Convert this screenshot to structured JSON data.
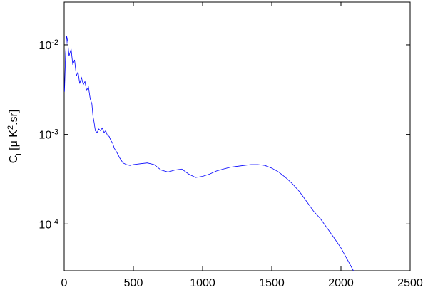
{
  "chart_data": {
    "type": "line",
    "ylabel": "C_{l} [μ K^{2}.sr]",
    "x": [
      2,
      10,
      18,
      25,
      35,
      50,
      62,
      75,
      88,
      100,
      112,
      125,
      138,
      150,
      162,
      175,
      188,
      200,
      208,
      215,
      225,
      238,
      250,
      262,
      275,
      288,
      300,
      312,
      325,
      338,
      350,
      362,
      375,
      388,
      400,
      425,
      450,
      475,
      500,
      550,
      600,
      650,
      700,
      750,
      800,
      850,
      900,
      950,
      1000,
      1050,
      1100,
      1150,
      1200,
      1250,
      1300,
      1350,
      1400,
      1450,
      1500,
      1550,
      1600,
      1650,
      1700,
      1750,
      1800,
      1850,
      1900,
      1950,
      2000,
      2050,
      2090
    ],
    "series": [
      {
        "color": "#0000ff",
        "values": [
          0.003,
          0.008,
          0.0125,
          0.011,
          0.0075,
          0.009,
          0.006,
          0.0068,
          0.0045,
          0.005,
          0.0037,
          0.0043,
          0.0036,
          0.0039,
          0.0031,
          0.0034,
          0.0025,
          0.0022,
          0.0016,
          0.0014,
          0.0011,
          0.00105,
          0.00115,
          0.0011,
          0.00118,
          0.00105,
          0.0011,
          0.00098,
          0.00095,
          0.00085,
          0.0008,
          0.0007,
          0.00065,
          0.0006,
          0.00055,
          0.00048,
          0.00046,
          0.00045,
          0.00046,
          0.00047,
          0.00048,
          0.00046,
          0.0004,
          0.00038,
          0.0004,
          0.00041,
          0.00036,
          0.00033,
          0.00034,
          0.00036,
          0.00039,
          0.00041,
          0.00043,
          0.00044,
          0.00045,
          0.00046,
          0.00046,
          0.00045,
          0.00042,
          0.00038,
          0.00033,
          0.00028,
          0.00023,
          0.00018,
          0.00014,
          0.000115,
          9e-05,
          7e-05,
          5.4e-05,
          3.9e-05,
          3e-05
        ]
      }
    ],
    "xlim": [
      0,
      2500
    ],
    "xticks": [
      0,
      500,
      1000,
      1500,
      2000,
      2500
    ],
    "ylim": [
      3e-05,
      0.03
    ],
    "log_y": true,
    "yticks": [
      {
        "value": 0.01,
        "label": "10^{-2}"
      },
      {
        "value": 0.001,
        "label": "10^{-3}"
      },
      {
        "value": 0.0001,
        "label": "10^{-4}"
      }
    ]
  }
}
